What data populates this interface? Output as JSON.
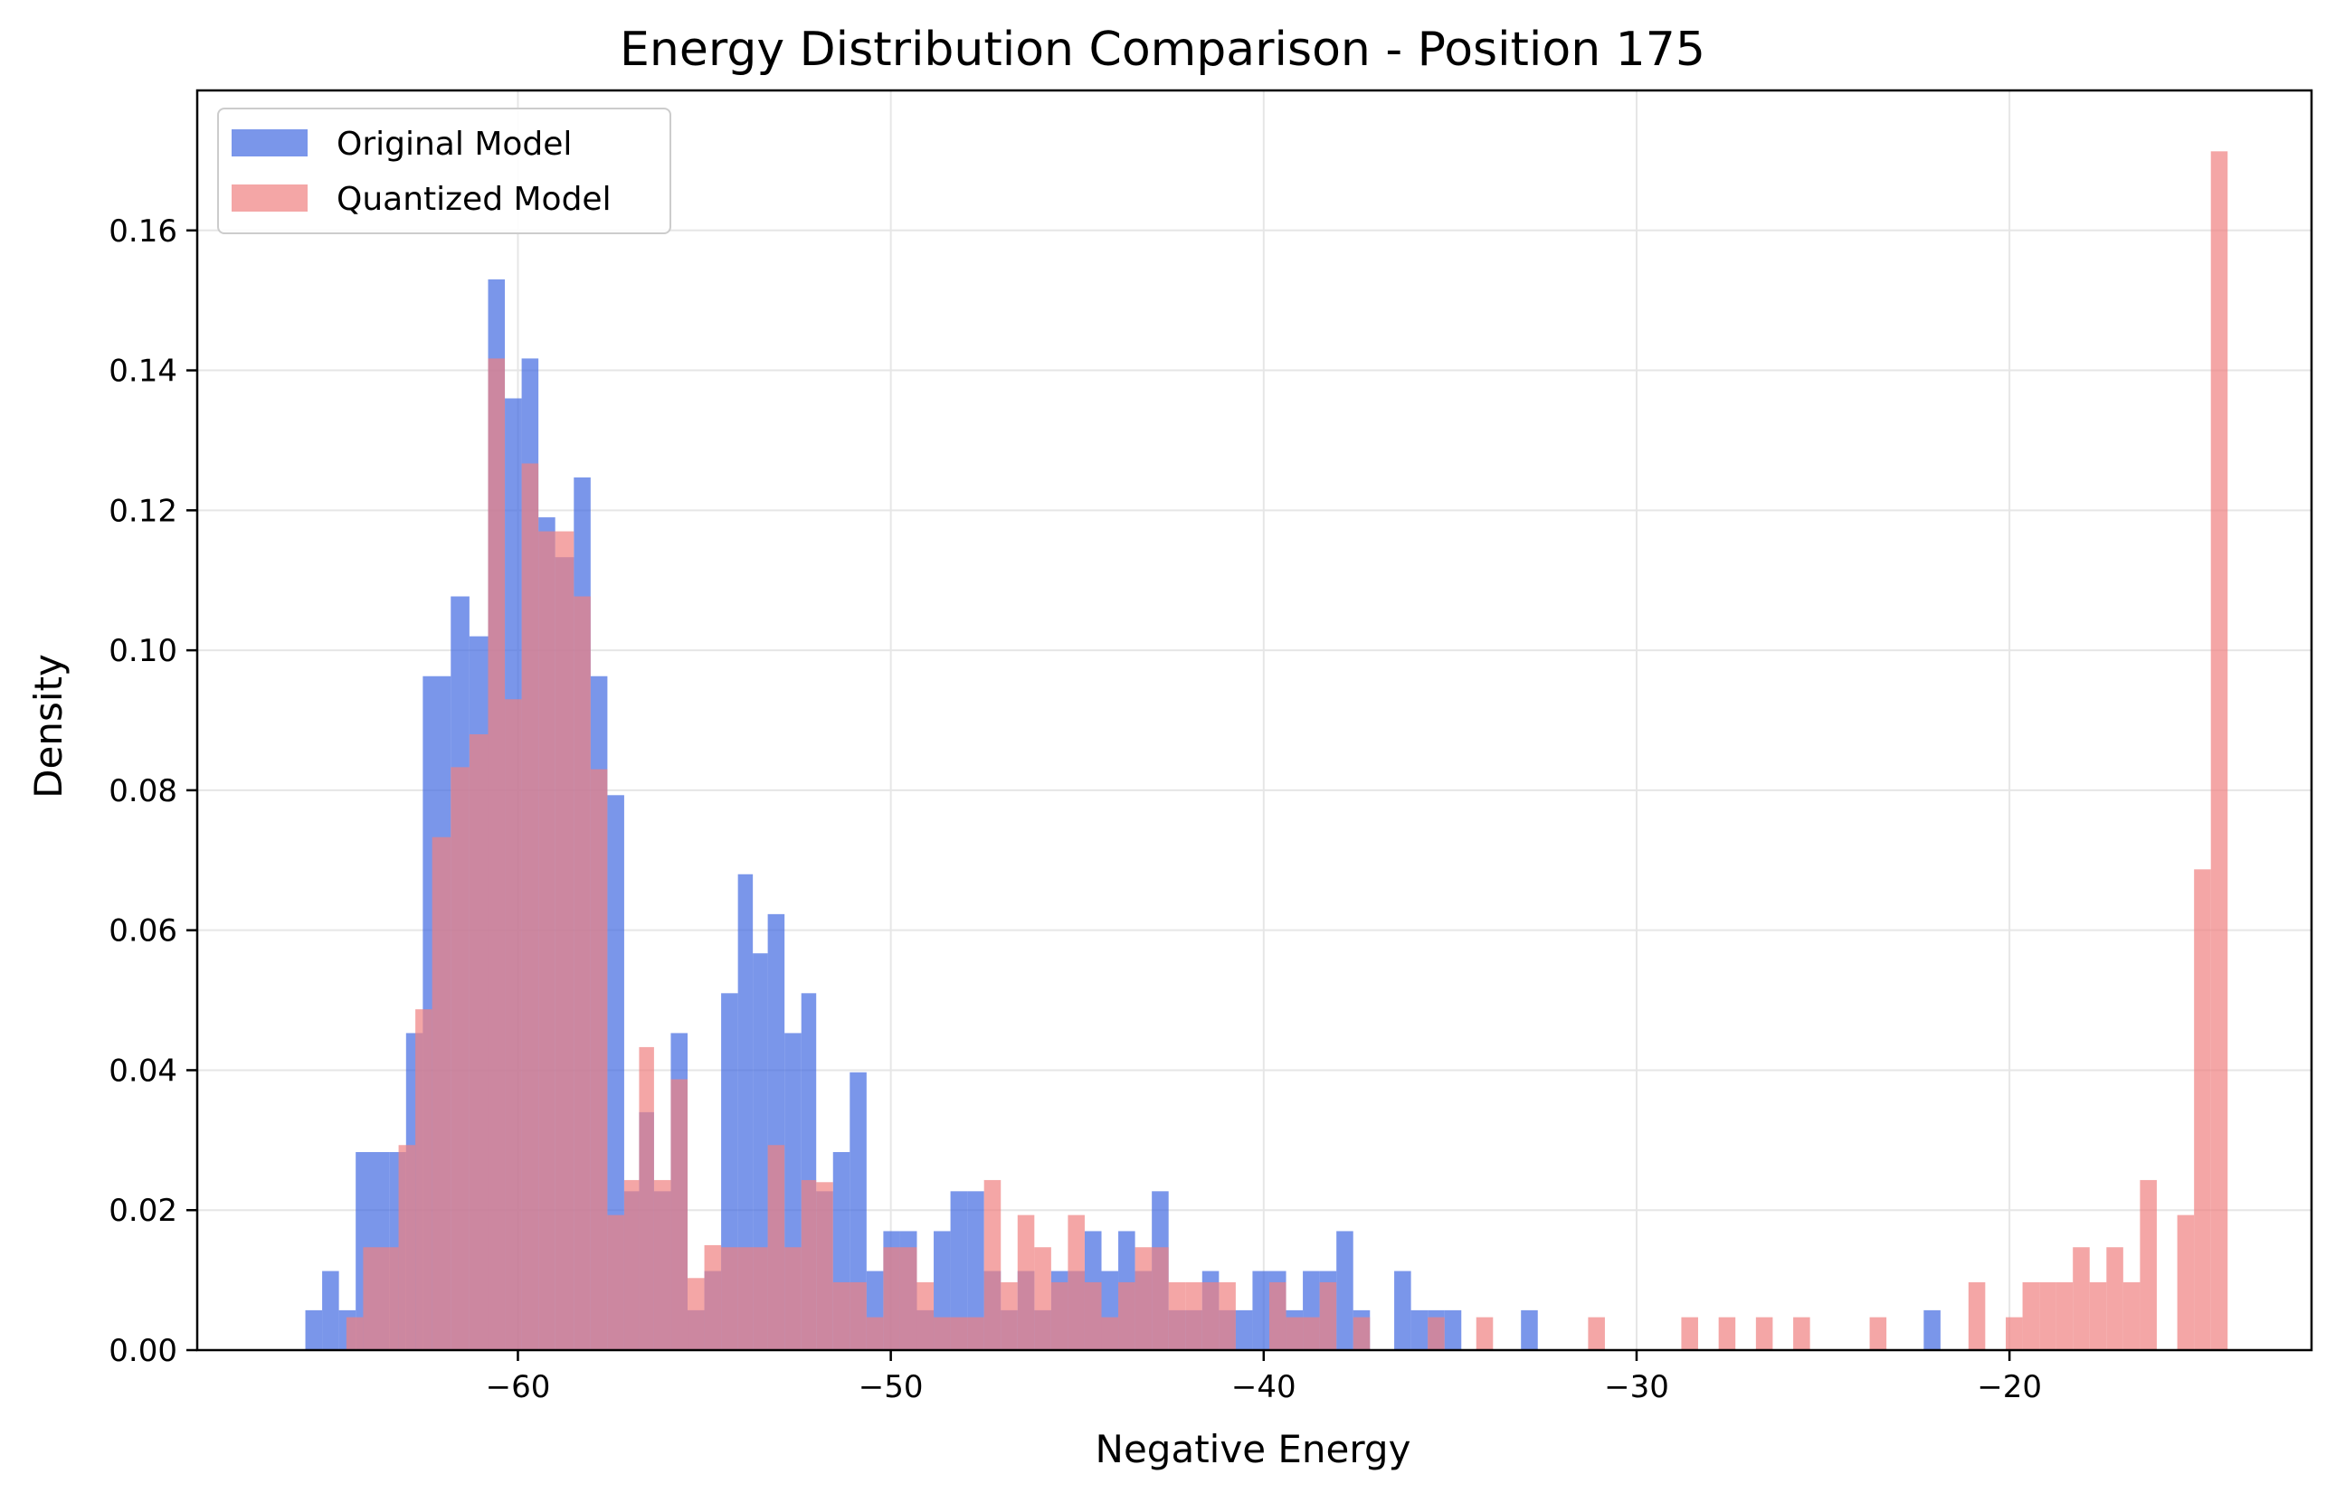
{
  "chart_data": {
    "type": "histogram",
    "title": "Energy Distribution Comparison - Position 175",
    "xlabel": "Negative Energy",
    "ylabel": "Density",
    "xlim": [
      -68.6,
      -11.9
    ],
    "ylim": [
      0,
      0.18
    ],
    "x_ticks": [
      {
        "value": -60,
        "label": "−60"
      },
      {
        "value": -50,
        "label": "−50"
      },
      {
        "value": -40,
        "label": "−40"
      },
      {
        "value": -30,
        "label": "−30"
      },
      {
        "value": -20,
        "label": "−20"
      }
    ],
    "y_ticks": [
      {
        "value": 0.0,
        "label": "0.00"
      },
      {
        "value": 0.02,
        "label": "0.02"
      },
      {
        "value": 0.04,
        "label": "0.04"
      },
      {
        "value": 0.06,
        "label": "0.06"
      },
      {
        "value": 0.08,
        "label": "0.08"
      },
      {
        "value": 0.1,
        "label": "0.10"
      },
      {
        "value": 0.12,
        "label": "0.12"
      },
      {
        "value": 0.14,
        "label": "0.14"
      },
      {
        "value": 0.16,
        "label": "0.16"
      }
    ],
    "grid": true,
    "legend_position": "top-left",
    "series": [
      {
        "name": "Original Model",
        "color": "#4169e1",
        "opacity": 0.7,
        "bins": [
          [
            -65.7,
            -65.25,
            0.0057
          ],
          [
            -65.25,
            -64.8,
            0.0113
          ],
          [
            -64.8,
            -64.35,
            0.0057
          ],
          [
            -64.35,
            -63.45,
            0.0283
          ],
          [
            -63.45,
            -63.0,
            0.0283
          ],
          [
            -63.0,
            -62.55,
            0.0453
          ],
          [
            -62.55,
            -61.8,
            0.0963
          ],
          [
            -61.8,
            -61.3,
            0.1077
          ],
          [
            -61.3,
            -60.8,
            0.102
          ],
          [
            -60.8,
            -60.35,
            0.153
          ],
          [
            -60.35,
            -59.9,
            0.136
          ],
          [
            -59.9,
            -59.45,
            0.1417
          ],
          [
            -59.45,
            -59.0,
            0.119
          ],
          [
            -59.0,
            -58.5,
            0.1133
          ],
          [
            -58.5,
            -58.05,
            0.1247
          ],
          [
            -58.05,
            -57.6,
            0.0963
          ],
          [
            -57.6,
            -57.15,
            0.0793
          ],
          [
            -57.15,
            -56.75,
            0.0227
          ],
          [
            -56.75,
            -56.35,
            0.034
          ],
          [
            -56.35,
            -55.9,
            0.0227
          ],
          [
            -55.9,
            -55.45,
            0.0453
          ],
          [
            -55.45,
            -55.0,
            0.0057
          ],
          [
            -55.0,
            -54.55,
            0.0113
          ],
          [
            -54.55,
            -54.1,
            0.051
          ],
          [
            -54.1,
            -53.7,
            0.068
          ],
          [
            -53.7,
            -53.3,
            0.0567
          ],
          [
            -53.3,
            -52.85,
            0.0623
          ],
          [
            -52.85,
            -52.4,
            0.0453
          ],
          [
            -52.4,
            -52.0,
            0.051
          ],
          [
            -52.0,
            -51.55,
            0.0227
          ],
          [
            -51.55,
            -51.1,
            0.0283
          ],
          [
            -51.1,
            -50.65,
            0.0397
          ],
          [
            -50.65,
            -50.2,
            0.0113
          ],
          [
            -50.2,
            -49.75,
            0.017
          ],
          [
            -49.75,
            -49.3,
            0.017
          ],
          [
            -49.3,
            -48.85,
            0.0057
          ],
          [
            -48.85,
            -48.4,
            0.017
          ],
          [
            -48.4,
            -47.95,
            0.0227
          ],
          [
            -47.95,
            -47.5,
            0.0227
          ],
          [
            -47.5,
            -47.05,
            0.0113
          ],
          [
            -47.05,
            -46.6,
            0.0057
          ],
          [
            -46.6,
            -46.15,
            0.0113
          ],
          [
            -46.15,
            -45.7,
            0.0057
          ],
          [
            -45.7,
            -45.25,
            0.0113
          ],
          [
            -45.25,
            -44.8,
            0.0113
          ],
          [
            -44.8,
            -44.35,
            0.017
          ],
          [
            -44.35,
            -43.9,
            0.0113
          ],
          [
            -43.9,
            -43.45,
            0.017
          ],
          [
            -43.45,
            -43.0,
            0.0113
          ],
          [
            -43.0,
            -42.55,
            0.0227
          ],
          [
            -42.55,
            -42.1,
            0.0057
          ],
          [
            -42.1,
            -41.65,
            0.0057
          ],
          [
            -41.65,
            -41.2,
            0.0113
          ],
          [
            -41.2,
            -40.75,
            0.0057
          ],
          [
            -40.75,
            -40.3,
            0.0057
          ],
          [
            -40.3,
            -39.85,
            0.0113
          ],
          [
            -39.85,
            -39.4,
            0.0113
          ],
          [
            -39.4,
            -38.95,
            0.0057
          ],
          [
            -38.95,
            -38.5,
            0.0113
          ],
          [
            -38.5,
            -38.05,
            0.0113
          ],
          [
            -38.05,
            -37.6,
            0.017
          ],
          [
            -37.6,
            -37.15,
            0.0057
          ],
          [
            -36.5,
            -36.05,
            0.0113
          ],
          [
            -36.05,
            -35.6,
            0.0057
          ],
          [
            -35.6,
            -35.15,
            0.0057
          ],
          [
            -35.15,
            -34.7,
            0.0057
          ],
          [
            -33.1,
            -32.65,
            0.0057
          ],
          [
            -22.3,
            -21.85,
            0.0057
          ]
        ]
      },
      {
        "name": "Quantized Model",
        "color": "#f08080",
        "opacity": 0.7,
        "bins": [
          [
            -64.6,
            -64.15,
            0.0047
          ],
          [
            -64.15,
            -63.2,
            0.0147
          ],
          [
            -63.2,
            -62.75,
            0.0293
          ],
          [
            -62.75,
            -62.3,
            0.0487
          ],
          [
            -62.3,
            -61.8,
            0.0733
          ],
          [
            -61.8,
            -61.3,
            0.0833
          ],
          [
            -61.3,
            -60.8,
            0.088
          ],
          [
            -60.8,
            -60.35,
            0.1417
          ],
          [
            -60.35,
            -59.9,
            0.093
          ],
          [
            -59.9,
            -59.45,
            0.1267
          ],
          [
            -59.45,
            -59.0,
            0.117
          ],
          [
            -59.0,
            -58.5,
            0.117
          ],
          [
            -58.5,
            -58.05,
            0.1077
          ],
          [
            -58.05,
            -57.6,
            0.083
          ],
          [
            -57.6,
            -57.15,
            0.0193
          ],
          [
            -57.15,
            -56.75,
            0.0243
          ],
          [
            -56.75,
            -56.35,
            0.0433
          ],
          [
            -56.35,
            -55.9,
            0.0243
          ],
          [
            -55.9,
            -55.45,
            0.0387
          ],
          [
            -55.45,
            -55.0,
            0.0103
          ],
          [
            -55.0,
            -54.55,
            0.015
          ],
          [
            -54.55,
            -54.1,
            0.0147
          ],
          [
            -54.1,
            -53.7,
            0.0147
          ],
          [
            -53.7,
            -53.3,
            0.0147
          ],
          [
            -53.3,
            -52.85,
            0.0293
          ],
          [
            -52.85,
            -52.4,
            0.0147
          ],
          [
            -52.4,
            -52.0,
            0.0243
          ],
          [
            -52.0,
            -51.55,
            0.024
          ],
          [
            -51.55,
            -51.1,
            0.0097
          ],
          [
            -51.1,
            -50.65,
            0.0097
          ],
          [
            -50.65,
            -50.2,
            0.0047
          ],
          [
            -50.2,
            -49.75,
            0.0147
          ],
          [
            -49.75,
            -49.3,
            0.0147
          ],
          [
            -49.3,
            -48.85,
            0.0097
          ],
          [
            -48.85,
            -48.4,
            0.0047
          ],
          [
            -48.4,
            -47.95,
            0.0047
          ],
          [
            -47.95,
            -47.5,
            0.0047
          ],
          [
            -47.5,
            -47.05,
            0.0243
          ],
          [
            -47.05,
            -46.6,
            0.0097
          ],
          [
            -46.6,
            -46.15,
            0.0193
          ],
          [
            -46.15,
            -45.7,
            0.0147
          ],
          [
            -45.7,
            -45.25,
            0.0097
          ],
          [
            -45.25,
            -44.8,
            0.0193
          ],
          [
            -44.8,
            -44.35,
            0.0097
          ],
          [
            -44.35,
            -43.9,
            0.0047
          ],
          [
            -43.9,
            -43.45,
            0.0097
          ],
          [
            -43.45,
            -43.0,
            0.0147
          ],
          [
            -43.0,
            -42.55,
            0.0147
          ],
          [
            -42.55,
            -42.1,
            0.0097
          ],
          [
            -42.1,
            -41.65,
            0.0097
          ],
          [
            -41.65,
            -41.2,
            0.0097
          ],
          [
            -41.2,
            -40.75,
            0.0097
          ],
          [
            -39.85,
            -39.4,
            0.0097
          ],
          [
            -39.4,
            -38.95,
            0.0047
          ],
          [
            -38.95,
            -38.5,
            0.0047
          ],
          [
            -38.5,
            -38.05,
            0.0097
          ],
          [
            -37.6,
            -37.15,
            0.0047
          ],
          [
            -35.6,
            -35.15,
            0.0047
          ],
          [
            -34.3,
            -33.85,
            0.0047
          ],
          [
            -31.3,
            -30.85,
            0.0047
          ],
          [
            -28.8,
            -28.35,
            0.0047
          ],
          [
            -27.8,
            -27.35,
            0.0047
          ],
          [
            -26.8,
            -26.35,
            0.0047
          ],
          [
            -25.8,
            -25.35,
            0.0047
          ],
          [
            -23.75,
            -23.3,
            0.0047
          ],
          [
            -21.1,
            -20.65,
            0.0097
          ],
          [
            -20.1,
            -19.65,
            0.0047
          ],
          [
            -19.65,
            -19.2,
            0.0097
          ],
          [
            -19.2,
            -18.75,
            0.0097
          ],
          [
            -18.75,
            -18.3,
            0.0097
          ],
          [
            -18.3,
            -17.85,
            0.0147
          ],
          [
            -17.85,
            -17.4,
            0.0097
          ],
          [
            -17.4,
            -16.95,
            0.0147
          ],
          [
            -16.95,
            -16.5,
            0.0097
          ],
          [
            -16.5,
            -16.05,
            0.0243
          ],
          [
            -15.5,
            -15.05,
            0.0193
          ],
          [
            -15.05,
            -14.6,
            0.0687
          ],
          [
            -14.6,
            -14.15,
            0.1713
          ]
        ]
      }
    ]
  }
}
